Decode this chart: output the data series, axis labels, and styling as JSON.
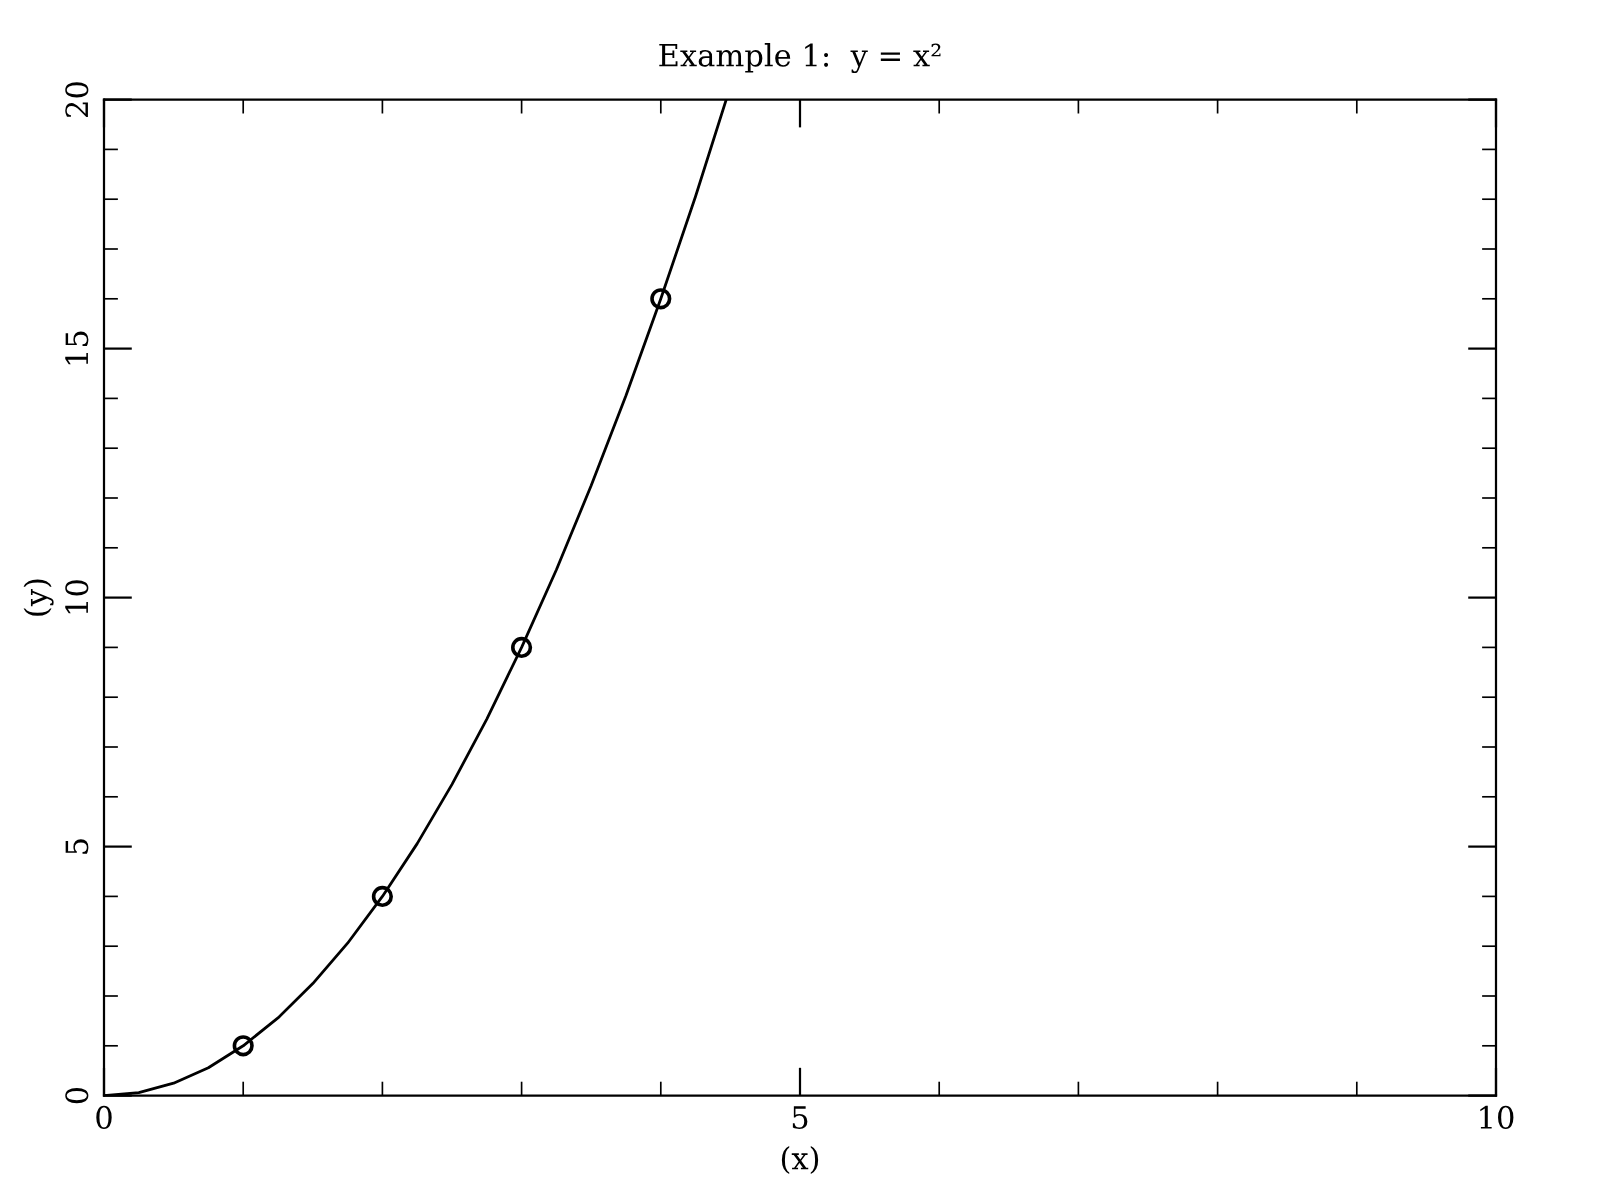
{
  "chart_data": {
    "type": "line",
    "title": "Example 1:  y = x²",
    "xlabel": "(x)",
    "ylabel": "(y)",
    "xlim": [
      0,
      10
    ],
    "xticks": [
      0,
      5,
      10
    ],
    "ylim": [
      0,
      20
    ],
    "yticks": [
      0,
      5,
      10,
      15,
      20
    ],
    "grid": false,
    "legend": false,
    "series": [
      {
        "color": "#000000",
        "marker": "none",
        "line_style": "solid",
        "x": [
          0,
          0.25,
          0.5,
          0.75,
          1,
          1.25,
          1.5,
          1.75,
          2,
          2.25,
          2.5,
          2.75,
          3,
          3.25,
          3.5,
          3.75,
          4,
          4.25,
          4.47
        ],
        "values": [
          0,
          0.06,
          0.25,
          0.56,
          1,
          1.56,
          2.25,
          3.06,
          4,
          5.06,
          6.25,
          7.56,
          9,
          10.56,
          12.25,
          14.06,
          16,
          18.06,
          20
        ]
      },
      {
        "type": "scatter",
        "color": "#000000",
        "marker": "circle",
        "x": [
          1,
          2,
          3,
          4
        ],
        "values": [
          1,
          4,
          9,
          16
        ]
      }
    ]
  }
}
